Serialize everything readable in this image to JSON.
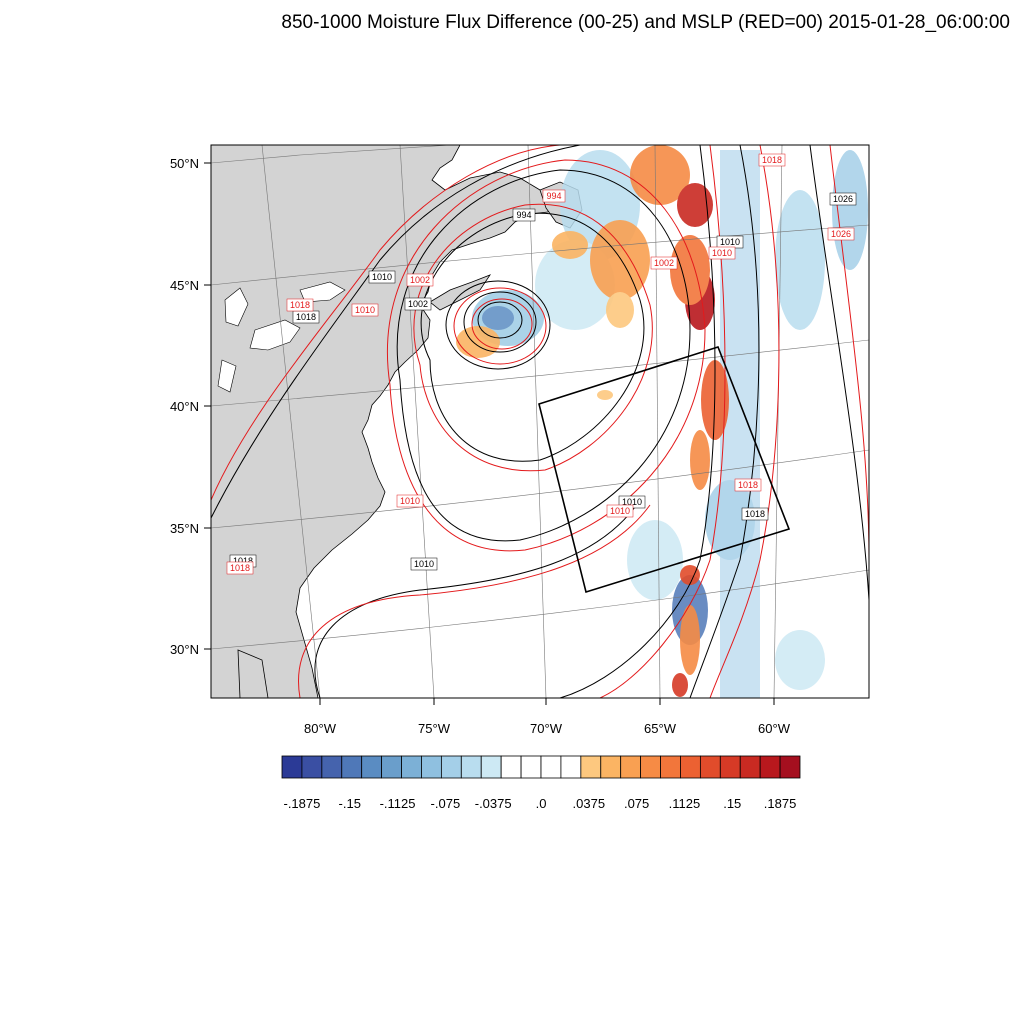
{
  "title": "850-1000 Moisture Flux Difference (00-25) and MSLP (RED=00) 2015-01-28_06:00:00",
  "map": {
    "lat_labels": [
      "50°N",
      "45°N",
      "40°N",
      "35°N",
      "30°N"
    ],
    "lon_labels": [
      "80°W",
      "75°W",
      "70°W",
      "65°W",
      "60°W"
    ],
    "colors": {
      "land": "#d3d3d3",
      "ocean": "#ffffff",
      "mslp_experiment": "#000000",
      "mslp_control": "#e31a1c",
      "box": "#000000"
    },
    "isobar_labels_black": [
      "994",
      "1002",
      "1010",
      "1018",
      "1026",
      "1010",
      "1010",
      "1018",
      "1010",
      "1018",
      "1010",
      "1018"
    ],
    "isobar_labels_red": [
      "994",
      "1002",
      "1010",
      "1018",
      "1026",
      "1002",
      "1010",
      "1010",
      "1018",
      "1018",
      "1010",
      "1018"
    ]
  },
  "colorbar": {
    "colors": [
      "#2b3a96",
      "#3a4fa3",
      "#4563ad",
      "#4f78b8",
      "#5a8cc2",
      "#6a9ecb",
      "#7cb0d6",
      "#8fc0e0",
      "#a4cfe8",
      "#b9ddef",
      "#cde9f4",
      "#ffffff",
      "#ffffff",
      "#ffffff",
      "#ffffff",
      "#fdc87f",
      "#fbb463",
      "#f9a052",
      "#f68b45",
      "#f2763b",
      "#ec6132",
      "#e14c2b",
      "#d63a26",
      "#c92a22",
      "#b8181d",
      "#a50f1f"
    ],
    "tick_labels": [
      "-.1875",
      "-.15",
      "-.1125",
      "-.075",
      "-.0375",
      ".0",
      ".0375",
      ".075",
      ".1125",
      ".15",
      ".1875"
    ]
  }
}
